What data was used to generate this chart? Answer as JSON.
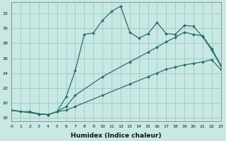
{
  "xlabel": "Humidex (Indice chaleur)",
  "bg_color": "#c8e8e4",
  "grid_color": "#a0c8c4",
  "line_color": "#2a6e68",
  "x_ticks": [
    0,
    1,
    2,
    3,
    4,
    5,
    6,
    7,
    8,
    9,
    10,
    11,
    12,
    13,
    14,
    15,
    16,
    17,
    18,
    19,
    20,
    21,
    22,
    23
  ],
  "y_ticks": [
    18,
    20,
    22,
    24,
    26,
    28,
    30,
    32
  ],
  "xlim": [
    0,
    23
  ],
  "ylim": [
    17.5,
    33.5
  ],
  "line1_x": [
    0,
    1,
    2,
    3,
    4,
    5,
    6,
    7,
    8,
    9,
    10,
    11,
    12,
    13,
    14,
    15,
    16,
    17,
    18,
    19,
    20,
    21,
    22,
    23
  ],
  "line1_y": [
    19.0,
    18.8,
    18.8,
    18.5,
    18.4,
    18.8,
    20.8,
    24.3,
    29.2,
    29.4,
    31.1,
    32.3,
    33.0,
    29.5,
    28.7,
    29.3,
    30.8,
    29.3,
    29.2,
    30.4,
    30.3,
    28.9,
    27.1,
    25.0
  ],
  "line2_x": [
    0,
    3,
    4,
    5,
    6,
    7,
    10,
    13,
    15,
    16,
    17,
    18,
    19,
    20,
    21,
    22,
    23
  ],
  "line2_y": [
    19.0,
    18.5,
    18.4,
    18.8,
    19.5,
    21.0,
    23.5,
    25.5,
    26.8,
    27.5,
    28.2,
    28.8,
    29.5,
    29.2,
    29.0,
    27.3,
    25.1
  ],
  "line3_x": [
    0,
    3,
    4,
    5,
    6,
    7,
    10,
    13,
    15,
    16,
    17,
    18,
    19,
    20,
    21,
    22,
    23
  ],
  "line3_y": [
    19.0,
    18.5,
    18.4,
    18.8,
    19.0,
    19.5,
    21.0,
    22.5,
    23.5,
    24.0,
    24.5,
    24.8,
    25.1,
    25.3,
    25.5,
    25.8,
    24.5
  ]
}
